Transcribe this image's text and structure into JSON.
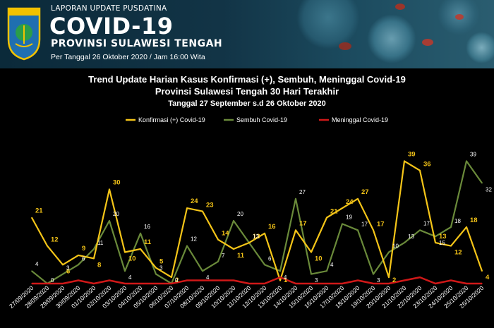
{
  "header": {
    "subtitle": "LAPORAN UPDATE PUSDATINA",
    "title": "COVID-19",
    "province": "PROVINSI SULAWESI TENGAH",
    "date": "Per Tanggal 26 Oktober 2020 / Jam 16:00 Wita",
    "logo_text": "SULAWESI TENGAH"
  },
  "chart_data": {
    "type": "line",
    "title": "Trend Update Harian Kasus Konfirmasi (+), Sembuh, Meninggal Covid-19",
    "title2": "Provinsi Sulawesi Tengah 30 Hari Terakhir",
    "subtitle": "Tanggal 27 September s.d 26 Oktober 2020",
    "categories": [
      "27/09/2020",
      "28/09/2020",
      "29/09/2020",
      "30/09/2020",
      "01/10/2020",
      "02/10/2020",
      "03/10/2020",
      "04/10/2020",
      "05/10/2020",
      "06/10/2020",
      "07/10/2020",
      "08/10/2020",
      "09/10/2020",
      "10/10/2020",
      "11/10/2020",
      "12/10/2020",
      "13/10/2020",
      "14/10/2020",
      "15/10/2020",
      "16/10/2020",
      "17/10/2020",
      "18/10/2020",
      "19/10/2020",
      "20/10/2020",
      "21/10/2020",
      "22/10/2020",
      "23/10/2020",
      "24/10/2020",
      "25/10/2020",
      "26/10/2020"
    ],
    "series": [
      {
        "name": "Konfirmasi (+) Covid-19",
        "color": "#f5c518",
        "values": [
          21,
          12,
          6,
          9,
          8,
          30,
          10,
          11,
          5,
          2,
          24,
          23,
          14,
          11,
          13,
          16,
          1,
          17,
          10,
          21,
          24,
          27,
          17,
          2,
          39,
          36,
          13,
          12,
          18,
          4
        ]
      },
      {
        "name": "Sembuh Covid-19",
        "color": "#6a8a3a",
        "values": [
          4,
          0,
          3,
          6,
          11,
          20,
          4,
          16,
          3,
          0,
          12,
          4,
          7,
          20,
          13,
          6,
          4,
          27,
          3,
          4,
          19,
          17,
          3,
          10,
          13,
          17,
          15,
          18,
          39,
          32
        ]
      },
      {
        "name": "Meninggal Covid-19",
        "color": "#d01818",
        "values": [
          0,
          0,
          0,
          1,
          0,
          1,
          0,
          0,
          0,
          0,
          1,
          1,
          1,
          1,
          0,
          0,
          2,
          0,
          0,
          0,
          0,
          1,
          0,
          0,
          1,
          2,
          0,
          1,
          0,
          0
        ]
      }
    ],
    "ylim": [
      0,
      42
    ],
    "grid": false,
    "legend_position": "top"
  }
}
